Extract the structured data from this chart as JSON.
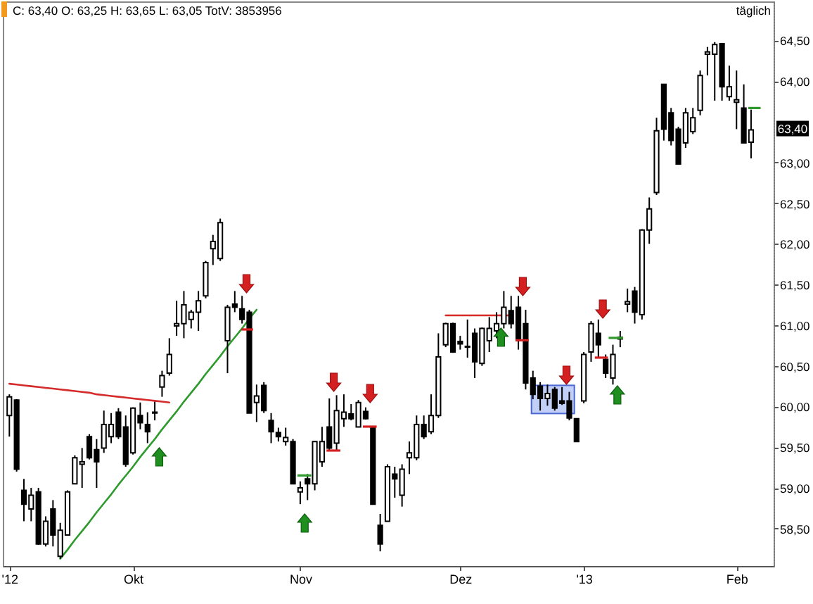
{
  "chart_data": {
    "type": "candlestick",
    "title": "C: 63,40 O: 63,25 H: 63,65 L: 63,05 TotV: 3853956",
    "subtitle": "täglich",
    "categories": [
      "'12",
      null,
      null,
      null,
      null,
      null,
      null,
      null,
      null,
      null,
      null,
      null,
      null,
      null,
      null,
      null,
      null,
      "Okt",
      null,
      null,
      null,
      null,
      null,
      null,
      null,
      null,
      null,
      null,
      null,
      null,
      null,
      null,
      null,
      null,
      null,
      null,
      null,
      null,
      null,
      null,
      "Nov",
      null,
      null,
      null,
      null,
      null,
      null,
      null,
      null,
      null,
      null,
      null,
      null,
      null,
      null,
      null,
      null,
      null,
      null,
      null,
      null,
      null,
      "Dez",
      null,
      null,
      null,
      null,
      null,
      null,
      null,
      null,
      null,
      null,
      null,
      null,
      null,
      null,
      null,
      null,
      "'13",
      null,
      null,
      null,
      null,
      null,
      null,
      null,
      null,
      null,
      null,
      null,
      null,
      null,
      null,
      null,
      null,
      null,
      null,
      null,
      null,
      "Feb",
      null,
      null
    ],
    "ohlc": [
      [
        59.89,
        60.15,
        59.63,
        60.12
      ],
      [
        60.08,
        60.09,
        59.2,
        59.23
      ],
      [
        58.97,
        59.11,
        58.59,
        58.8
      ],
      [
        58.74,
        59.0,
        58.59,
        58.91
      ],
      [
        58.95,
        59.0,
        58.3,
        58.31
      ],
      [
        58.31,
        58.65,
        58.28,
        58.59
      ],
      [
        58.74,
        58.85,
        58.28,
        58.42
      ],
      [
        58.16,
        58.57,
        58.13,
        58.48
      ],
      [
        58.42,
        58.97,
        58.42,
        58.95
      ],
      [
        59.05,
        59.4,
        59.05,
        59.37
      ],
      [
        59.29,
        59.49,
        59.0,
        59.32
      ],
      [
        59.63,
        59.66,
        59.35,
        59.37
      ],
      [
        59.47,
        59.6,
        59.0,
        59.32
      ],
      [
        59.49,
        59.95,
        59.43,
        59.78
      ],
      [
        59.63,
        59.92,
        59.55,
        59.78
      ],
      [
        59.93,
        59.98,
        59.6,
        59.63
      ],
      [
        59.75,
        59.89,
        59.26,
        59.29
      ],
      [
        59.43,
        59.99,
        59.41,
        59.98
      ],
      [
        59.89,
        60.05,
        59.72,
        59.8
      ],
      [
        59.78,
        59.93,
        59.55,
        59.69
      ],
      [
        59.92,
        60.06,
        59.83,
        59.93
      ],
      [
        60.24,
        60.44,
        60.12,
        60.38
      ],
      [
        60.41,
        60.84,
        60.38,
        60.64
      ],
      [
        60.99,
        61.3,
        60.87,
        61.02
      ],
      [
        61.02,
        61.42,
        60.84,
        61.25
      ],
      [
        61.07,
        61.19,
        60.96,
        61.16
      ],
      [
        61.16,
        61.42,
        60.93,
        61.3
      ],
      [
        61.36,
        61.79,
        61.33,
        61.77
      ],
      [
        61.94,
        62.11,
        61.74,
        62.03
      ],
      [
        61.82,
        62.31,
        61.79,
        62.26
      ],
      [
        60.81,
        61.25,
        60.41,
        61.22
      ],
      [
        61.26,
        61.42,
        61.16,
        61.22
      ],
      [
        61.2,
        61.36,
        61.02,
        61.07
      ],
      [
        61.16,
        61.19,
        59.92,
        59.92
      ],
      [
        60.05,
        60.27,
        59.81,
        60.13
      ],
      [
        60.26,
        60.3,
        59.92,
        59.95
      ],
      [
        59.83,
        59.92,
        59.55,
        59.69
      ],
      [
        59.68,
        59.74,
        59.57,
        59.63
      ],
      [
        59.57,
        59.74,
        59.52,
        59.62
      ],
      [
        59.57,
        59.6,
        59.05,
        59.05
      ],
      [
        58.95,
        59.08,
        58.8,
        59.0
      ],
      [
        59.11,
        59.17,
        58.85,
        59.05
      ],
      [
        59.05,
        59.57,
        58.97,
        59.57
      ],
      [
        59.32,
        59.75,
        59.26,
        59.57
      ],
      [
        59.75,
        60.1,
        59.46,
        59.49
      ],
      [
        59.55,
        60.14,
        59.46,
        59.95
      ],
      [
        59.85,
        60.15,
        59.75,
        59.93
      ],
      [
        59.91,
        60.03,
        59.83,
        59.85
      ],
      [
        59.75,
        60.08,
        59.75,
        60.05
      ],
      [
        59.94,
        59.99,
        59.84,
        59.85
      ],
      [
        59.75,
        59.76,
        58.8,
        58.8
      ],
      [
        58.54,
        58.68,
        58.22,
        58.31
      ],
      [
        58.59,
        59.29,
        58.59,
        59.26
      ],
      [
        59.17,
        59.26,
        58.88,
        59.11
      ],
      [
        58.91,
        59.29,
        58.77,
        59.23
      ],
      [
        59.37,
        59.57,
        59.17,
        59.43
      ],
      [
        59.37,
        59.89,
        59.34,
        59.78
      ],
      [
        59.78,
        59.89,
        59.6,
        59.63
      ],
      [
        59.69,
        60.15,
        59.66,
        59.89
      ],
      [
        59.89,
        60.9,
        59.86,
        60.61
      ],
      [
        60.76,
        61.03,
        60.73,
        61.02
      ],
      [
        61.02,
        61.03,
        60.66,
        60.67
      ],
      [
        60.8,
        60.87,
        60.7,
        60.77
      ],
      [
        60.74,
        61.07,
        60.6,
        60.73
      ],
      [
        60.9,
        60.96,
        60.35,
        60.55
      ],
      [
        60.53,
        60.97,
        60.5,
        60.96
      ],
      [
        60.81,
        61.1,
        60.67,
        60.96
      ],
      [
        60.93,
        61.16,
        60.84,
        61.02
      ],
      [
        61.02,
        61.42,
        60.96,
        61.22
      ],
      [
        61.18,
        61.36,
        60.96,
        61.02
      ],
      [
        61.22,
        61.36,
        60.7,
        60.81
      ],
      [
        61.02,
        61.19,
        60.21,
        60.29
      ],
      [
        60.35,
        60.44,
        60.09,
        60.15
      ],
      [
        60.25,
        60.3,
        59.95,
        60.1
      ],
      [
        60.1,
        60.27,
        60.01,
        60.16
      ],
      [
        60.21,
        60.24,
        59.95,
        59.98
      ],
      [
        60.07,
        60.24,
        60.02,
        60.04
      ],
      [
        60.07,
        60.18,
        59.83,
        59.86
      ],
      [
        59.85,
        59.85,
        59.57,
        59.57
      ],
      [
        60.07,
        60.67,
        60.04,
        60.64
      ],
      [
        60.67,
        61.05,
        60.55,
        61.02
      ],
      [
        60.9,
        61.07,
        60.61,
        60.76
      ],
      [
        60.58,
        60.64,
        60.35,
        60.41
      ],
      [
        60.35,
        60.76,
        60.27,
        60.64
      ],
      [
        60.83,
        60.93,
        60.73,
        60.85
      ],
      [
        61.26,
        61.45,
        61.16,
        61.29
      ],
      [
        61.42,
        61.47,
        61.02,
        61.16
      ],
      [
        61.13,
        62.18,
        61.07,
        62.17
      ],
      [
        62.17,
        62.57,
        62.0,
        62.43
      ],
      [
        62.63,
        63.55,
        62.6,
        63.39
      ],
      [
        63.96,
        63.96,
        63.27,
        63.41
      ],
      [
        63.61,
        63.67,
        63.21,
        63.27
      ],
      [
        63.41,
        63.44,
        62.98,
        62.98
      ],
      [
        63.24,
        63.67,
        63.18,
        63.61
      ],
      [
        63.38,
        63.67,
        63.35,
        63.55
      ],
      [
        63.64,
        64.13,
        63.58,
        64.07
      ],
      [
        64.33,
        64.42,
        64.07,
        64.36
      ],
      [
        64.33,
        64.48,
        63.76,
        64.45
      ],
      [
        64.46,
        64.47,
        63.76,
        63.93
      ],
      [
        63.81,
        64.19,
        63.76,
        63.93
      ],
      [
        63.74,
        64.13,
        63.41,
        63.77
      ],
      [
        63.67,
        63.96,
        63.24,
        63.24
      ],
      [
        63.25,
        63.65,
        63.05,
        63.4
      ]
    ],
    "color": "#000000",
    "series": [
      {
        "type": "line",
        "color": "#d42a2a",
        "values": [
          60.28,
          60.27,
          60.26,
          60.25,
          60.24,
          60.23,
          60.22,
          60.21,
          60.2,
          60.19,
          60.18,
          60.17,
          60.15,
          60.14,
          60.13,
          60.12,
          60.11,
          60.1,
          60.09,
          60.08,
          60.07,
          60.06,
          60.05,
          null,
          null,
          null,
          null,
          null,
          null,
          null,
          null,
          null,
          null,
          null,
          null,
          null,
          null,
          null,
          null,
          null,
          null,
          null,
          null,
          null,
          null,
          null,
          null,
          null,
          null,
          null,
          null,
          null,
          null,
          null,
          null,
          null,
          null,
          null,
          null,
          null,
          null,
          null,
          null,
          null,
          null,
          null,
          null,
          null,
          null,
          null,
          null,
          null,
          null,
          null,
          null,
          null,
          null,
          null,
          null,
          null,
          null,
          null,
          null,
          null,
          null,
          null,
          null,
          null,
          null,
          null,
          null,
          null,
          null,
          null,
          null,
          null,
          null,
          null,
          null,
          null,
          null,
          null,
          null
        ]
      },
      {
        "type": "line",
        "color": "#2e9a2e",
        "values": [
          null,
          null,
          null,
          null,
          null,
          null,
          null,
          58.13,
          58.24,
          58.36,
          58.47,
          58.58,
          58.7,
          58.81,
          58.92,
          59.04,
          59.15,
          59.26,
          59.38,
          59.49,
          59.6,
          59.72,
          59.83,
          59.94,
          60.06,
          60.17,
          60.28,
          60.4,
          60.51,
          60.62,
          60.74,
          60.85,
          60.96,
          61.08,
          61.19,
          null,
          null,
          null,
          null,
          null,
          null,
          null,
          null,
          null,
          null,
          null,
          null,
          null,
          null,
          null,
          null,
          null,
          null,
          null,
          null,
          null,
          null,
          null,
          null,
          null,
          null,
          null,
          null,
          null,
          null,
          null,
          null,
          null,
          null,
          null,
          null,
          null,
          null,
          null,
          null,
          null,
          null,
          null,
          null,
          null,
          null,
          null,
          null,
          null,
          null,
          null,
          null,
          null,
          null,
          null,
          null,
          null,
          null,
          null,
          null,
          null,
          null,
          null,
          null,
          null,
          null,
          null,
          null
        ]
      },
      {
        "type": "line",
        "color": "#d42a2a",
        "values": [
          null,
          null,
          null,
          null,
          null,
          null,
          null,
          null,
          null,
          null,
          null,
          null,
          null,
          null,
          null,
          null,
          null,
          null,
          null,
          null,
          null,
          null,
          null,
          null,
          null,
          null,
          null,
          null,
          null,
          null,
          null,
          null,
          null,
          null,
          null,
          null,
          null,
          null,
          null,
          null,
          null,
          null,
          null,
          null,
          null,
          null,
          null,
          null,
          null,
          null,
          null,
          null,
          null,
          null,
          null,
          null,
          null,
          null,
          null,
          null,
          61.12,
          61.12,
          61.12,
          61.12,
          61.12,
          61.12,
          61.12,
          61.12,
          61.12,
          61.12,
          null,
          null,
          null,
          null,
          null,
          null,
          null,
          null,
          null,
          null,
          null,
          null,
          null,
          null,
          null,
          null,
          null,
          null,
          null,
          null,
          null,
          null,
          null,
          null,
          null,
          null,
          null,
          null,
          null,
          null,
          null,
          null,
          null
        ]
      }
    ],
    "ylim": [
      58.04,
      64.98
    ],
    "yticks": [
      {
        "value": 58.5,
        "label": "58,50"
      },
      {
        "value": 59,
        "label": "59,00"
      },
      {
        "value": 59.5,
        "label": "59,50"
      },
      {
        "value": 60,
        "label": "60,00"
      },
      {
        "value": 60.5,
        "label": "60,50"
      },
      {
        "value": 61,
        "label": "61,00"
      },
      {
        "value": 61.5,
        "label": "61,50"
      },
      {
        "value": 62,
        "label": "62,00"
      },
      {
        "value": 62.5,
        "label": "62,50"
      },
      {
        "value": 63,
        "label": "63,00"
      },
      {
        "value": 64,
        "label": "64,00"
      },
      {
        "value": 64.5,
        "label": "64,50"
      }
    ],
    "annotations": [
      "63,40"
    ]
  }
}
